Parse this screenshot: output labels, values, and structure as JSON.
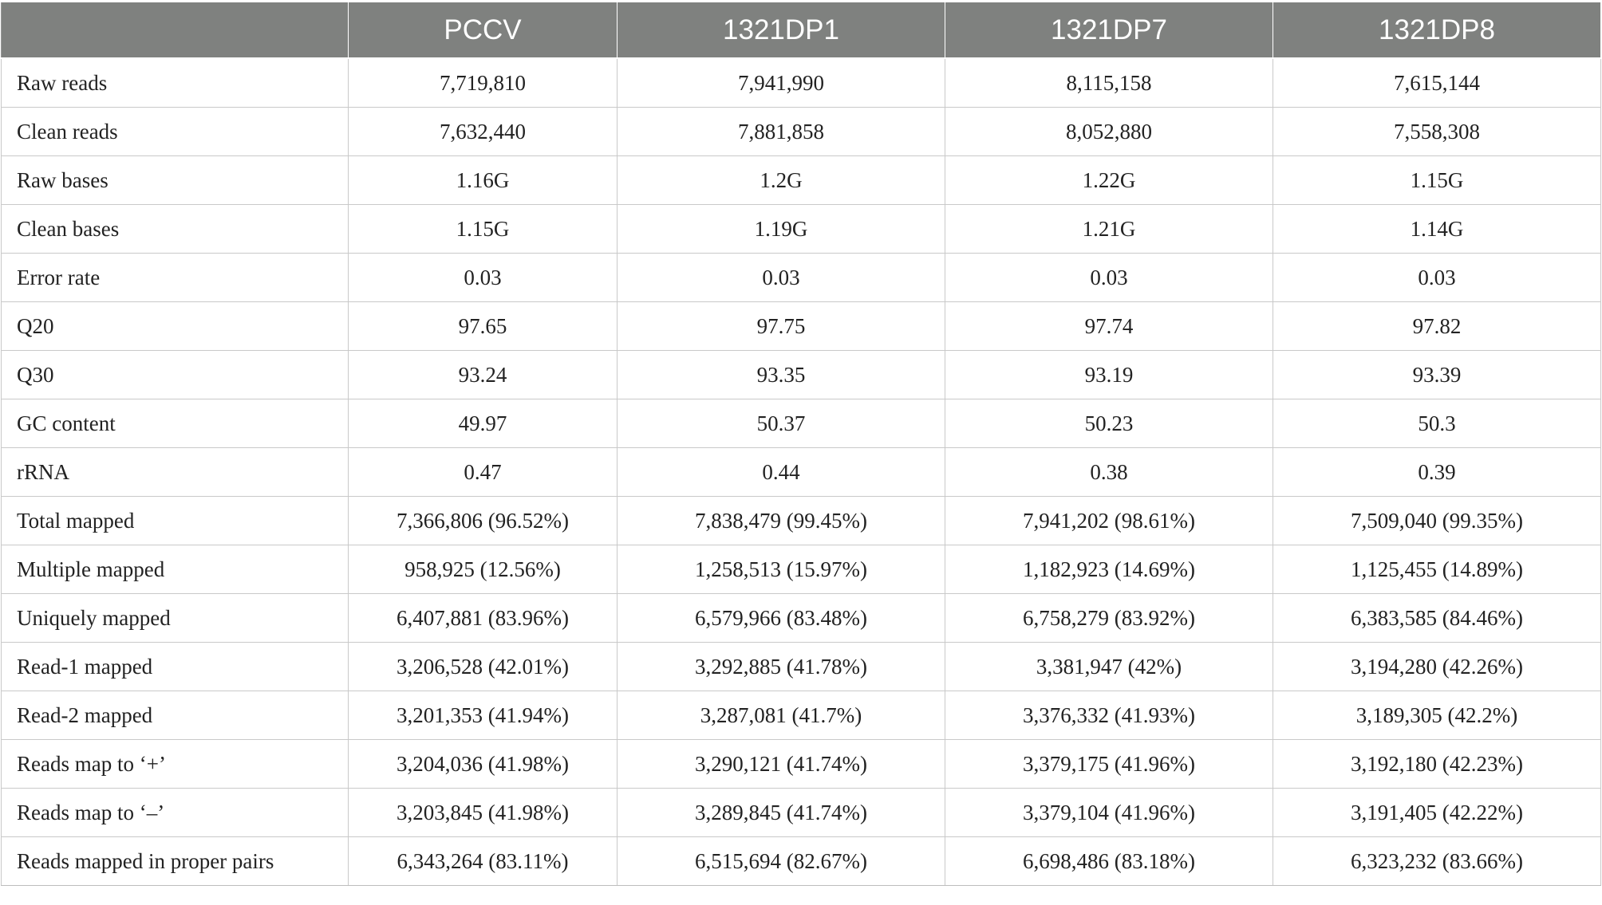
{
  "table": {
    "columns": [
      "",
      "PCCV",
      "1321DP1",
      "1321DP7",
      "1321DP8"
    ],
    "rows": [
      {
        "label": "Raw reads",
        "values": [
          "7,719,810",
          "7,941,990",
          "8,115,158",
          "7,615,144"
        ]
      },
      {
        "label": "Clean reads",
        "values": [
          "7,632,440",
          "7,881,858",
          "8,052,880",
          "7,558,308"
        ]
      },
      {
        "label": "Raw bases",
        "values": [
          "1.16G",
          "1.2G",
          "1.22G",
          "1.15G"
        ]
      },
      {
        "label": "Clean bases",
        "values": [
          "1.15G",
          "1.19G",
          "1.21G",
          "1.14G"
        ]
      },
      {
        "label": "Error rate",
        "values": [
          "0.03",
          "0.03",
          "0.03",
          "0.03"
        ]
      },
      {
        "label": "Q20",
        "values": [
          "97.65",
          "97.75",
          "97.74",
          "97.82"
        ]
      },
      {
        "label": "Q30",
        "values": [
          "93.24",
          "93.35",
          "93.19",
          "93.39"
        ]
      },
      {
        "label": "GC content",
        "values": [
          "49.97",
          "50.37",
          "50.23",
          "50.3"
        ]
      },
      {
        "label": "rRNA",
        "values": [
          "0.47",
          "0.44",
          "0.38",
          "0.39"
        ]
      },
      {
        "label": "Total mapped",
        "values": [
          "7,366,806 (96.52%)",
          "7,838,479 (99.45%)",
          "7,941,202 (98.61%)",
          "7,509,040 (99.35%)"
        ]
      },
      {
        "label": "Multiple mapped",
        "values": [
          "958,925 (12.56%)",
          "1,258,513 (15.97%)",
          "1,182,923 (14.69%)",
          "1,125,455 (14.89%)"
        ]
      },
      {
        "label": "Uniquely mapped",
        "values": [
          "6,407,881 (83.96%)",
          "6,579,966 (83.48%)",
          "6,758,279 (83.92%)",
          "6,383,585 (84.46%)"
        ]
      },
      {
        "label": "Read-1 mapped",
        "values": [
          "3,206,528 (42.01%)",
          "3,292,885 (41.78%)",
          "3,381,947 (42%)",
          "3,194,280 (42.26%)"
        ]
      },
      {
        "label": "Read-2 mapped",
        "values": [
          "3,201,353 (41.94%)",
          "3,287,081 (41.7%)",
          "3,376,332 (41.93%)",
          "3,189,305 (42.2%)"
        ]
      },
      {
        "label": "Reads map to ‘+’",
        "values": [
          "3,204,036 (41.98%)",
          "3,290,121 (41.74%)",
          "3,379,175 (41.96%)",
          "3,192,180 (42.23%)"
        ]
      },
      {
        "label": "Reads map to ‘–’",
        "values": [
          "3,203,845 (41.98%)",
          "3,289,845 (41.74%)",
          "3,379,104 (41.96%)",
          "3,191,405 (42.22%)"
        ]
      },
      {
        "label": "Reads mapped in proper pairs",
        "values": [
          "6,343,264 (83.11%)",
          "6,515,694 (82.67%)",
          "6,698,486 (83.18%)",
          "6,323,232 (83.66%)"
        ]
      }
    ]
  }
}
